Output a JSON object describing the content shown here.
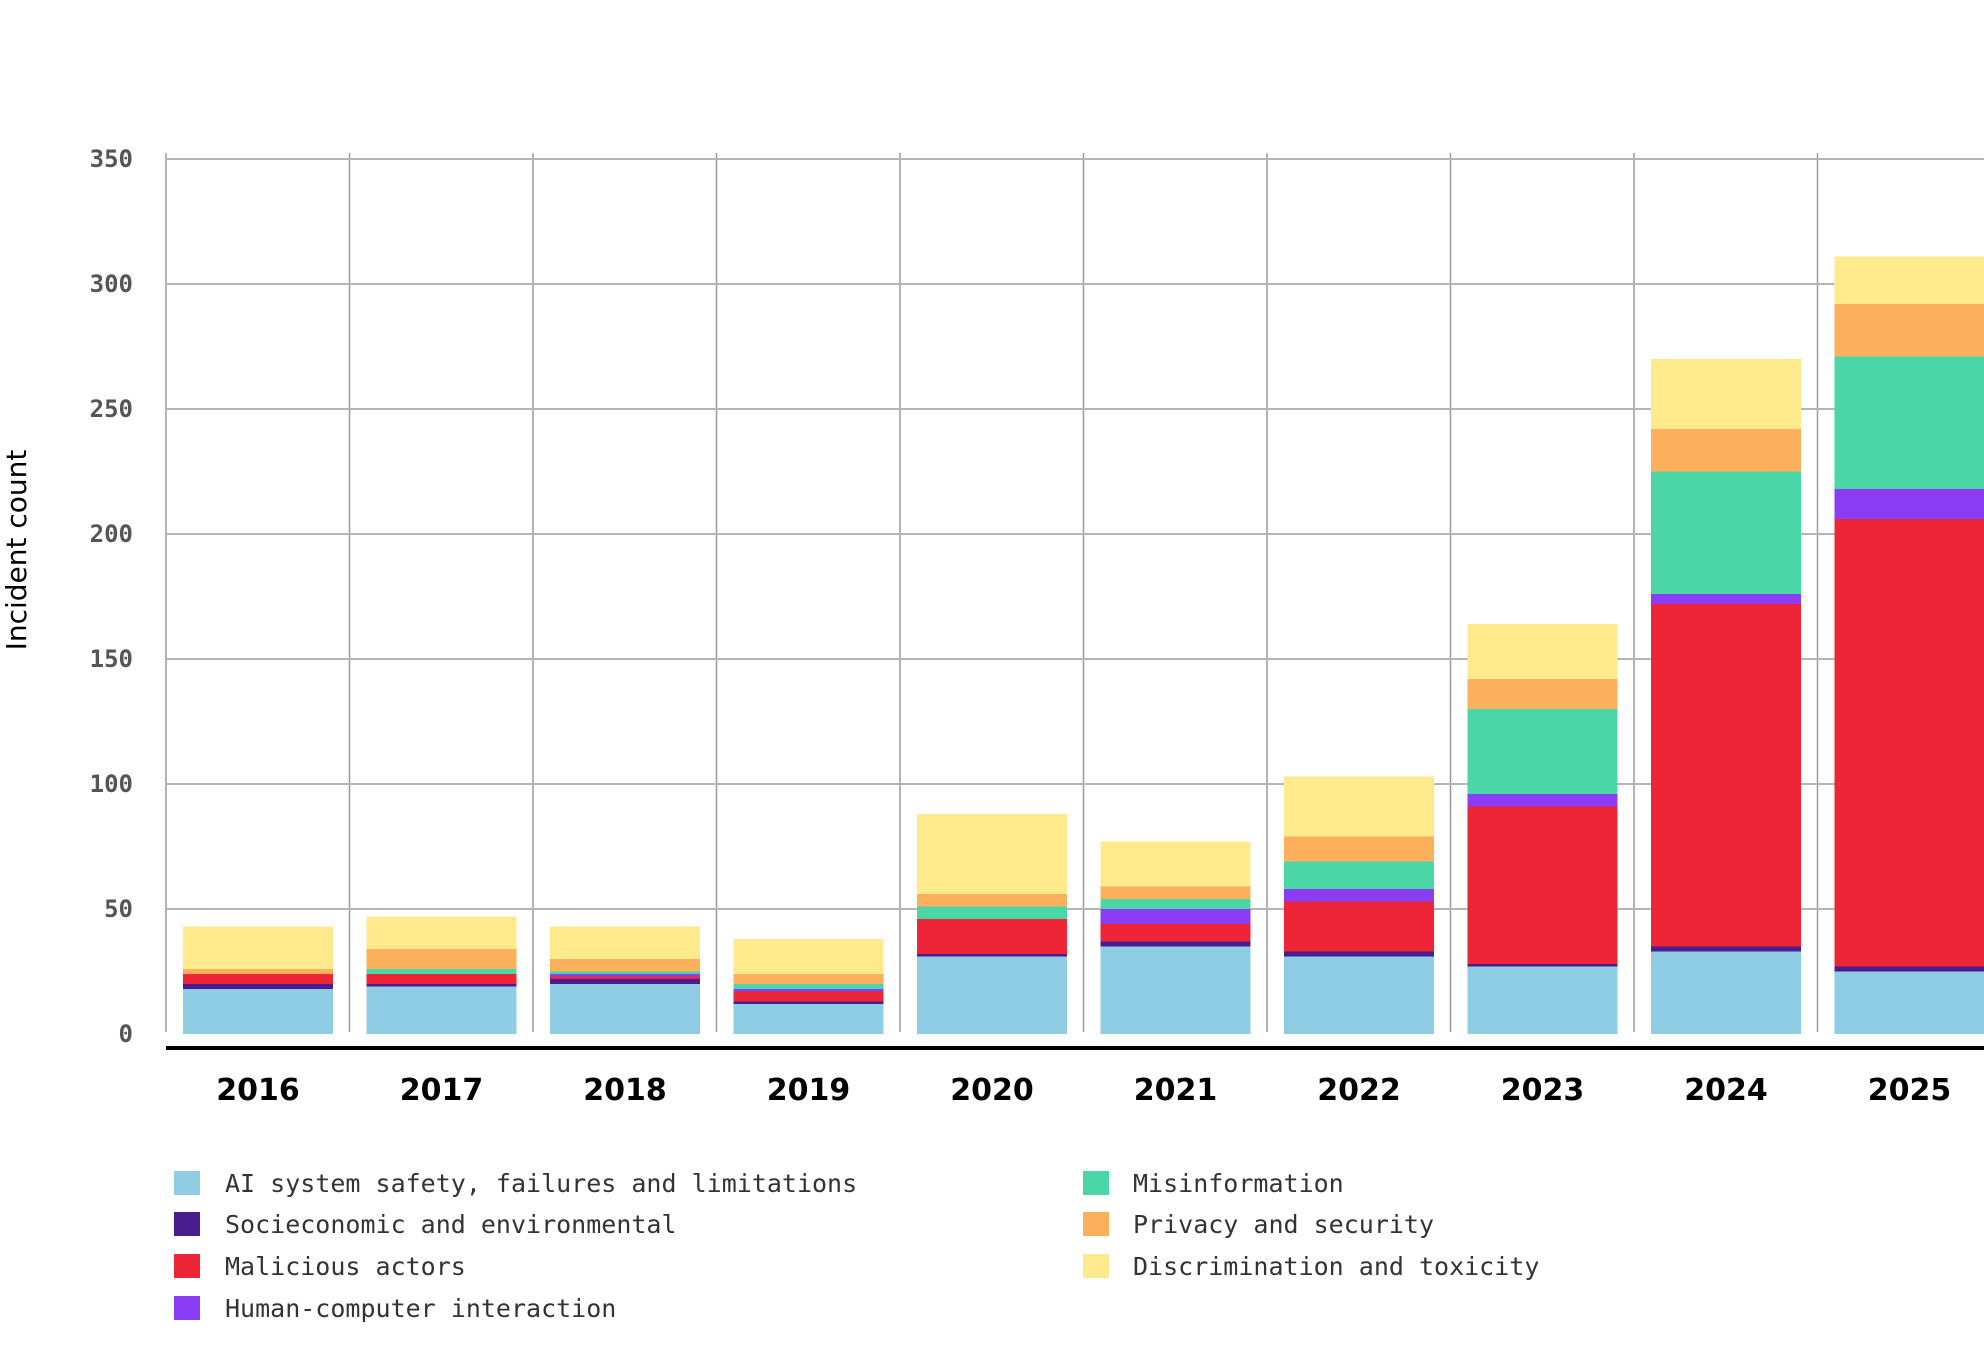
{
  "chart_data": {
    "type": "bar",
    "stacked": true,
    "title": "",
    "xlabel": "",
    "ylabel": "Incident count",
    "ylim": [
      0,
      350
    ],
    "yticks": [
      0,
      50,
      100,
      150,
      200,
      250,
      300,
      350
    ],
    "grid": true,
    "legend_position": "bottom",
    "categories": [
      "2016",
      "2017",
      "2018",
      "2019",
      "2020",
      "2021",
      "2022",
      "2023",
      "2024",
      "2025"
    ],
    "series": [
      {
        "name": "AI system safety, failures and limitations",
        "color": "#8ecde3",
        "values": [
          18,
          19,
          20,
          12,
          31,
          35,
          31,
          27,
          33,
          25
        ]
      },
      {
        "name": "Socieconomic and environmental",
        "color": "#4a1d8f",
        "values": [
          2,
          1,
          2,
          1,
          1,
          2,
          2,
          1,
          2,
          2
        ]
      },
      {
        "name": "Malicious actors",
        "color": "#ee2536",
        "values": [
          4,
          4,
          1,
          4,
          14,
          7,
          20,
          63,
          137,
          179
        ]
      },
      {
        "name": "Human-computer interaction",
        "color": "#8b3df5",
        "values": [
          0,
          0,
          1,
          1,
          0,
          6,
          5,
          5,
          4,
          12
        ]
      },
      {
        "name": "Misinformation",
        "color": "#4bd6a8",
        "values": [
          0,
          2,
          1,
          2,
          5,
          4,
          11,
          34,
          49,
          53
        ]
      },
      {
        "name": "Privacy and security",
        "color": "#fdb05b",
        "values": [
          2,
          8,
          5,
          4,
          5,
          5,
          10,
          12,
          17,
          21
        ]
      },
      {
        "name": "Discrimination and toxicity",
        "color": "#fee98c",
        "values": [
          17,
          13,
          13,
          14,
          32,
          18,
          24,
          22,
          28,
          19
        ]
      }
    ]
  }
}
